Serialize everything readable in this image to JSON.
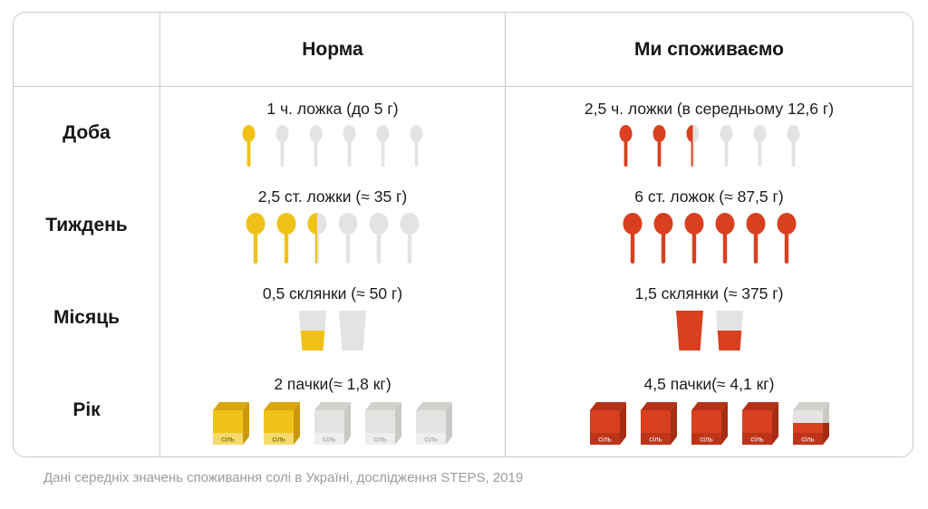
{
  "header": {
    "norm": "Норма",
    "actual": "Ми споживаємо"
  },
  "rows": [
    {
      "label": "Доба",
      "norm": {
        "text": "1 ч. ложка (до 5 г)",
        "icons": {
          "type": "teaspoon",
          "total": 6,
          "filled": 1,
          "palette": "norm"
        }
      },
      "actual": {
        "text": "2,5 ч. ложки (в середньому 12,6 г)",
        "icons": {
          "type": "teaspoon",
          "total": 6,
          "filled": 2.5,
          "palette": "actual"
        }
      }
    },
    {
      "label": "Тиждень",
      "norm": {
        "text": "2,5 ст. ложки (≈ 35 г)",
        "icons": {
          "type": "tablespoon",
          "total": 6,
          "filled": 2.5,
          "palette": "norm"
        }
      },
      "actual": {
        "text": "6 ст. ложок (≈ 87,5 г)",
        "icons": {
          "type": "tablespoon",
          "total": 6,
          "filled": 6,
          "palette": "actual"
        }
      }
    },
    {
      "label": "Місяць",
      "norm": {
        "text": "0,5 склянки (≈ 50 г)",
        "icons": {
          "type": "glass",
          "total": 2,
          "filled": 0.5,
          "palette": "norm"
        }
      },
      "actual": {
        "text": "1,5 склянки (≈ 375 г)",
        "icons": {
          "type": "glass",
          "total": 2,
          "filled": 1.5,
          "palette": "actual"
        }
      }
    },
    {
      "label": "Рік",
      "norm": {
        "text": "2 пачки(≈ 1,8 кг)",
        "icons": {
          "type": "pack",
          "total": 5,
          "filled": 2,
          "palette": "norm"
        }
      },
      "actual": {
        "text": "4,5 пачки(≈ 4,1 кг)",
        "icons": {
          "type": "pack",
          "total": 5,
          "filled": 4.5,
          "palette": "actual"
        }
      }
    }
  ],
  "pack_label": "сіль",
  "footer": "Дані середніх значень споживання солі в Україні, дослідження STEPS, 2019",
  "colors": {
    "norm": "#F0C219",
    "actual": "#D8401F",
    "empty": "#E4E3E1",
    "pack": {
      "norm": {
        "front": "#F0C219",
        "top": "#D9A60F",
        "side": "#C8990D",
        "band": "#F6DA6A",
        "text": "#6B5300"
      },
      "actual": {
        "front": "#D8401F",
        "top": "#B33115",
        "side": "#A52D13",
        "band": "#BE3418",
        "text": "#FFFFFF"
      },
      "empty": {
        "front": "#E4E3E1",
        "top": "#D2D1CE",
        "side": "#C9C8C5",
        "band": "#EFEEEC",
        "text": "#9A9996"
      }
    }
  },
  "chart_data": {
    "type": "table",
    "title": "Salt consumption in Ukraine: norm vs actual",
    "columns": [
      "Норма",
      "Ми споживаємо"
    ],
    "rows": [
      {
        "period": "Доба",
        "norm_label": "1 ч. ложка (до 5 г)",
        "norm_value": 1,
        "norm_unit": "ч. ложка",
        "norm_grams": 5,
        "actual_label": "2,5 ч. ложки (в середньому 12,6 г)",
        "actual_value": 2.5,
        "actual_unit": "ч. ложки",
        "actual_grams": 12.6,
        "icons_total": 6
      },
      {
        "period": "Тиждень",
        "norm_label": "2,5 ст. ложки (≈ 35 г)",
        "norm_value": 2.5,
        "norm_unit": "ст. ложки",
        "norm_grams": 35,
        "actual_label": "6 ст. ложок (≈ 87,5 г)",
        "actual_value": 6,
        "actual_unit": "ст. ложок",
        "actual_grams": 87.5,
        "icons_total": 6
      },
      {
        "period": "Місяць",
        "norm_label": "0,5 склянки (≈ 50 г)",
        "norm_value": 0.5,
        "norm_unit": "склянки",
        "norm_grams": 50,
        "actual_label": "1,5 склянки (≈ 375 г)",
        "actual_value": 1.5,
        "actual_unit": "склянки",
        "actual_grams": 375,
        "icons_total": 2
      },
      {
        "period": "Рік",
        "norm_label": "2 пачки(≈ 1,8 кг)",
        "norm_value": 2,
        "norm_unit": "пачки",
        "norm_kg": 1.8,
        "actual_label": "4,5 пачки(≈ 4,1 кг)",
        "actual_value": 4.5,
        "actual_unit": "пачки",
        "actual_kg": 4.1,
        "icons_total": 5
      }
    ],
    "legend": {
      "norm_color": "#F0C219",
      "actual_color": "#D8401F",
      "empty_color": "#E4E3E1"
    },
    "source": "Дані середніх значень споживання солі в Україні, дослідження STEPS, 2019"
  }
}
